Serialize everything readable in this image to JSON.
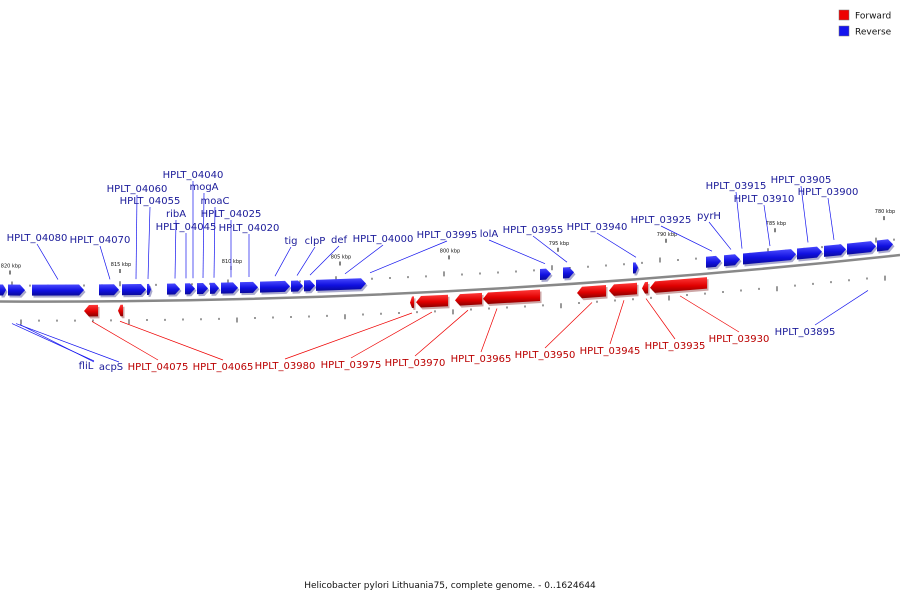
{
  "legend": [
    {
      "label": "Forward",
      "color": "#ee0000"
    },
    {
      "label": "Reverse",
      "color": "#1515ee"
    }
  ],
  "caption": "Helicobacter pylori Lithuania75, complete genome. - 0..1624644",
  "colors": {
    "forward": "#ee0000",
    "reverse": "#1515ee",
    "backbone": "#888888",
    "forward_label": "#bb0000",
    "reverse_label": "#1a1a99"
  },
  "scale": {
    "unit": "kbp",
    "start_kbp": 820,
    "end_kbp": 780,
    "ticks": [
      {
        "label": "820 kbp",
        "kbp": 820
      },
      {
        "label": "815 kbp",
        "kbp": 815
      },
      {
        "label": "810 kbp",
        "kbp": 810
      },
      {
        "label": "805 kbp",
        "kbp": 805
      },
      {
        "label": "800 kbp",
        "kbp": 800
      },
      {
        "label": "795 kbp",
        "kbp": 795
      },
      {
        "label": "790 kbp",
        "kbp": 790
      },
      {
        "label": "785 kbp",
        "kbp": 785
      },
      {
        "label": "780 kbp",
        "kbp": 780
      }
    ]
  },
  "reverse_genes": [
    {
      "label": "fliL"
    },
    {
      "label": "acpS"
    },
    {
      "label": "HPLT_04080"
    },
    {
      "label": "HPLT_04070"
    },
    {
      "label": "HPLT_04060"
    },
    {
      "label": "HPLT_04055"
    },
    {
      "label": "ribA"
    },
    {
      "label": "HPLT_04045"
    },
    {
      "label": "HPLT_04040"
    },
    {
      "label": "mogA"
    },
    {
      "label": "moaC"
    },
    {
      "label": "HPLT_04025"
    },
    {
      "label": "HPLT_04020"
    },
    {
      "label": "tig"
    },
    {
      "label": "clpP"
    },
    {
      "label": "def"
    },
    {
      "label": "HPLT_04000"
    },
    {
      "label": "HPLT_03995"
    },
    {
      "label": "lolA"
    },
    {
      "label": "HPLT_03955"
    },
    {
      "label": "HPLT_03940"
    },
    {
      "label": "HPLT_03925"
    },
    {
      "label": "pyrH"
    },
    {
      "label": "HPLT_03915"
    },
    {
      "label": "HPLT_03910"
    },
    {
      "label": "HPLT_03905"
    },
    {
      "label": "HPLT_03900"
    },
    {
      "label": "HPLT_03895"
    }
  ],
  "forward_genes": [
    {
      "label": "HPLT_04075"
    },
    {
      "label": "HPLT_04065"
    },
    {
      "label": "HPLT_03980"
    },
    {
      "label": "HPLT_03975"
    },
    {
      "label": "HPLT_03970"
    },
    {
      "label": "HPLT_03965"
    },
    {
      "label": "HPLT_03950"
    },
    {
      "label": "HPLT_03945"
    },
    {
      "label": "HPLT_03935"
    },
    {
      "label": "HPLT_03930"
    }
  ]
}
